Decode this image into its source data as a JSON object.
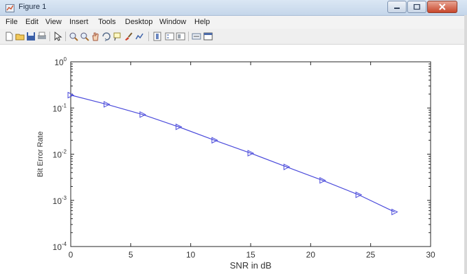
{
  "window": {
    "title": "Figure 1",
    "controls": {
      "minimize": "minimize",
      "maximize": "maximize",
      "close": "close"
    }
  },
  "menu": [
    "File",
    "Edit",
    "View",
    "Insert",
    "Tools",
    "Desktop",
    "Window",
    "Help"
  ],
  "toolbar": {
    "icons": [
      "new-figure-icon",
      "open-file-icon",
      "save-icon",
      "print-icon",
      "edit-plot-icon",
      "zoom-in-icon",
      "zoom-out-icon",
      "pan-icon",
      "rotate-3d-icon",
      "data-cursor-icon",
      "brush-icon",
      "link-icon",
      "insert-colorbar-icon",
      "insert-legend-icon",
      "hide-plot-tools-icon",
      "show-plot-tools-icon"
    ]
  },
  "chart_data": {
    "type": "line",
    "title": "",
    "xlabel": "SNR in dB",
    "ylabel": "Bit Error Rate",
    "xlim": [
      0,
      30
    ],
    "ylim": [
      0.0001,
      1
    ],
    "yscale": "log",
    "grid": false,
    "x_ticks": [
      "0",
      "5",
      "10",
      "15",
      "20",
      "25",
      "30"
    ],
    "y_tick_mantissa": "10",
    "y_tick_exponents": [
      "0",
      "-1",
      "-2",
      "-3",
      "-4"
    ],
    "series": [
      {
        "marker": "triangle-right",
        "color": "#4a4adb",
        "x": [
          0,
          3,
          6,
          9,
          12,
          15,
          18,
          21,
          24,
          27
        ],
        "y": [
          0.19,
          0.12,
          0.072,
          0.039,
          0.02,
          0.0105,
          0.0053,
          0.0027,
          0.00132,
          0.00056
        ]
      }
    ]
  }
}
